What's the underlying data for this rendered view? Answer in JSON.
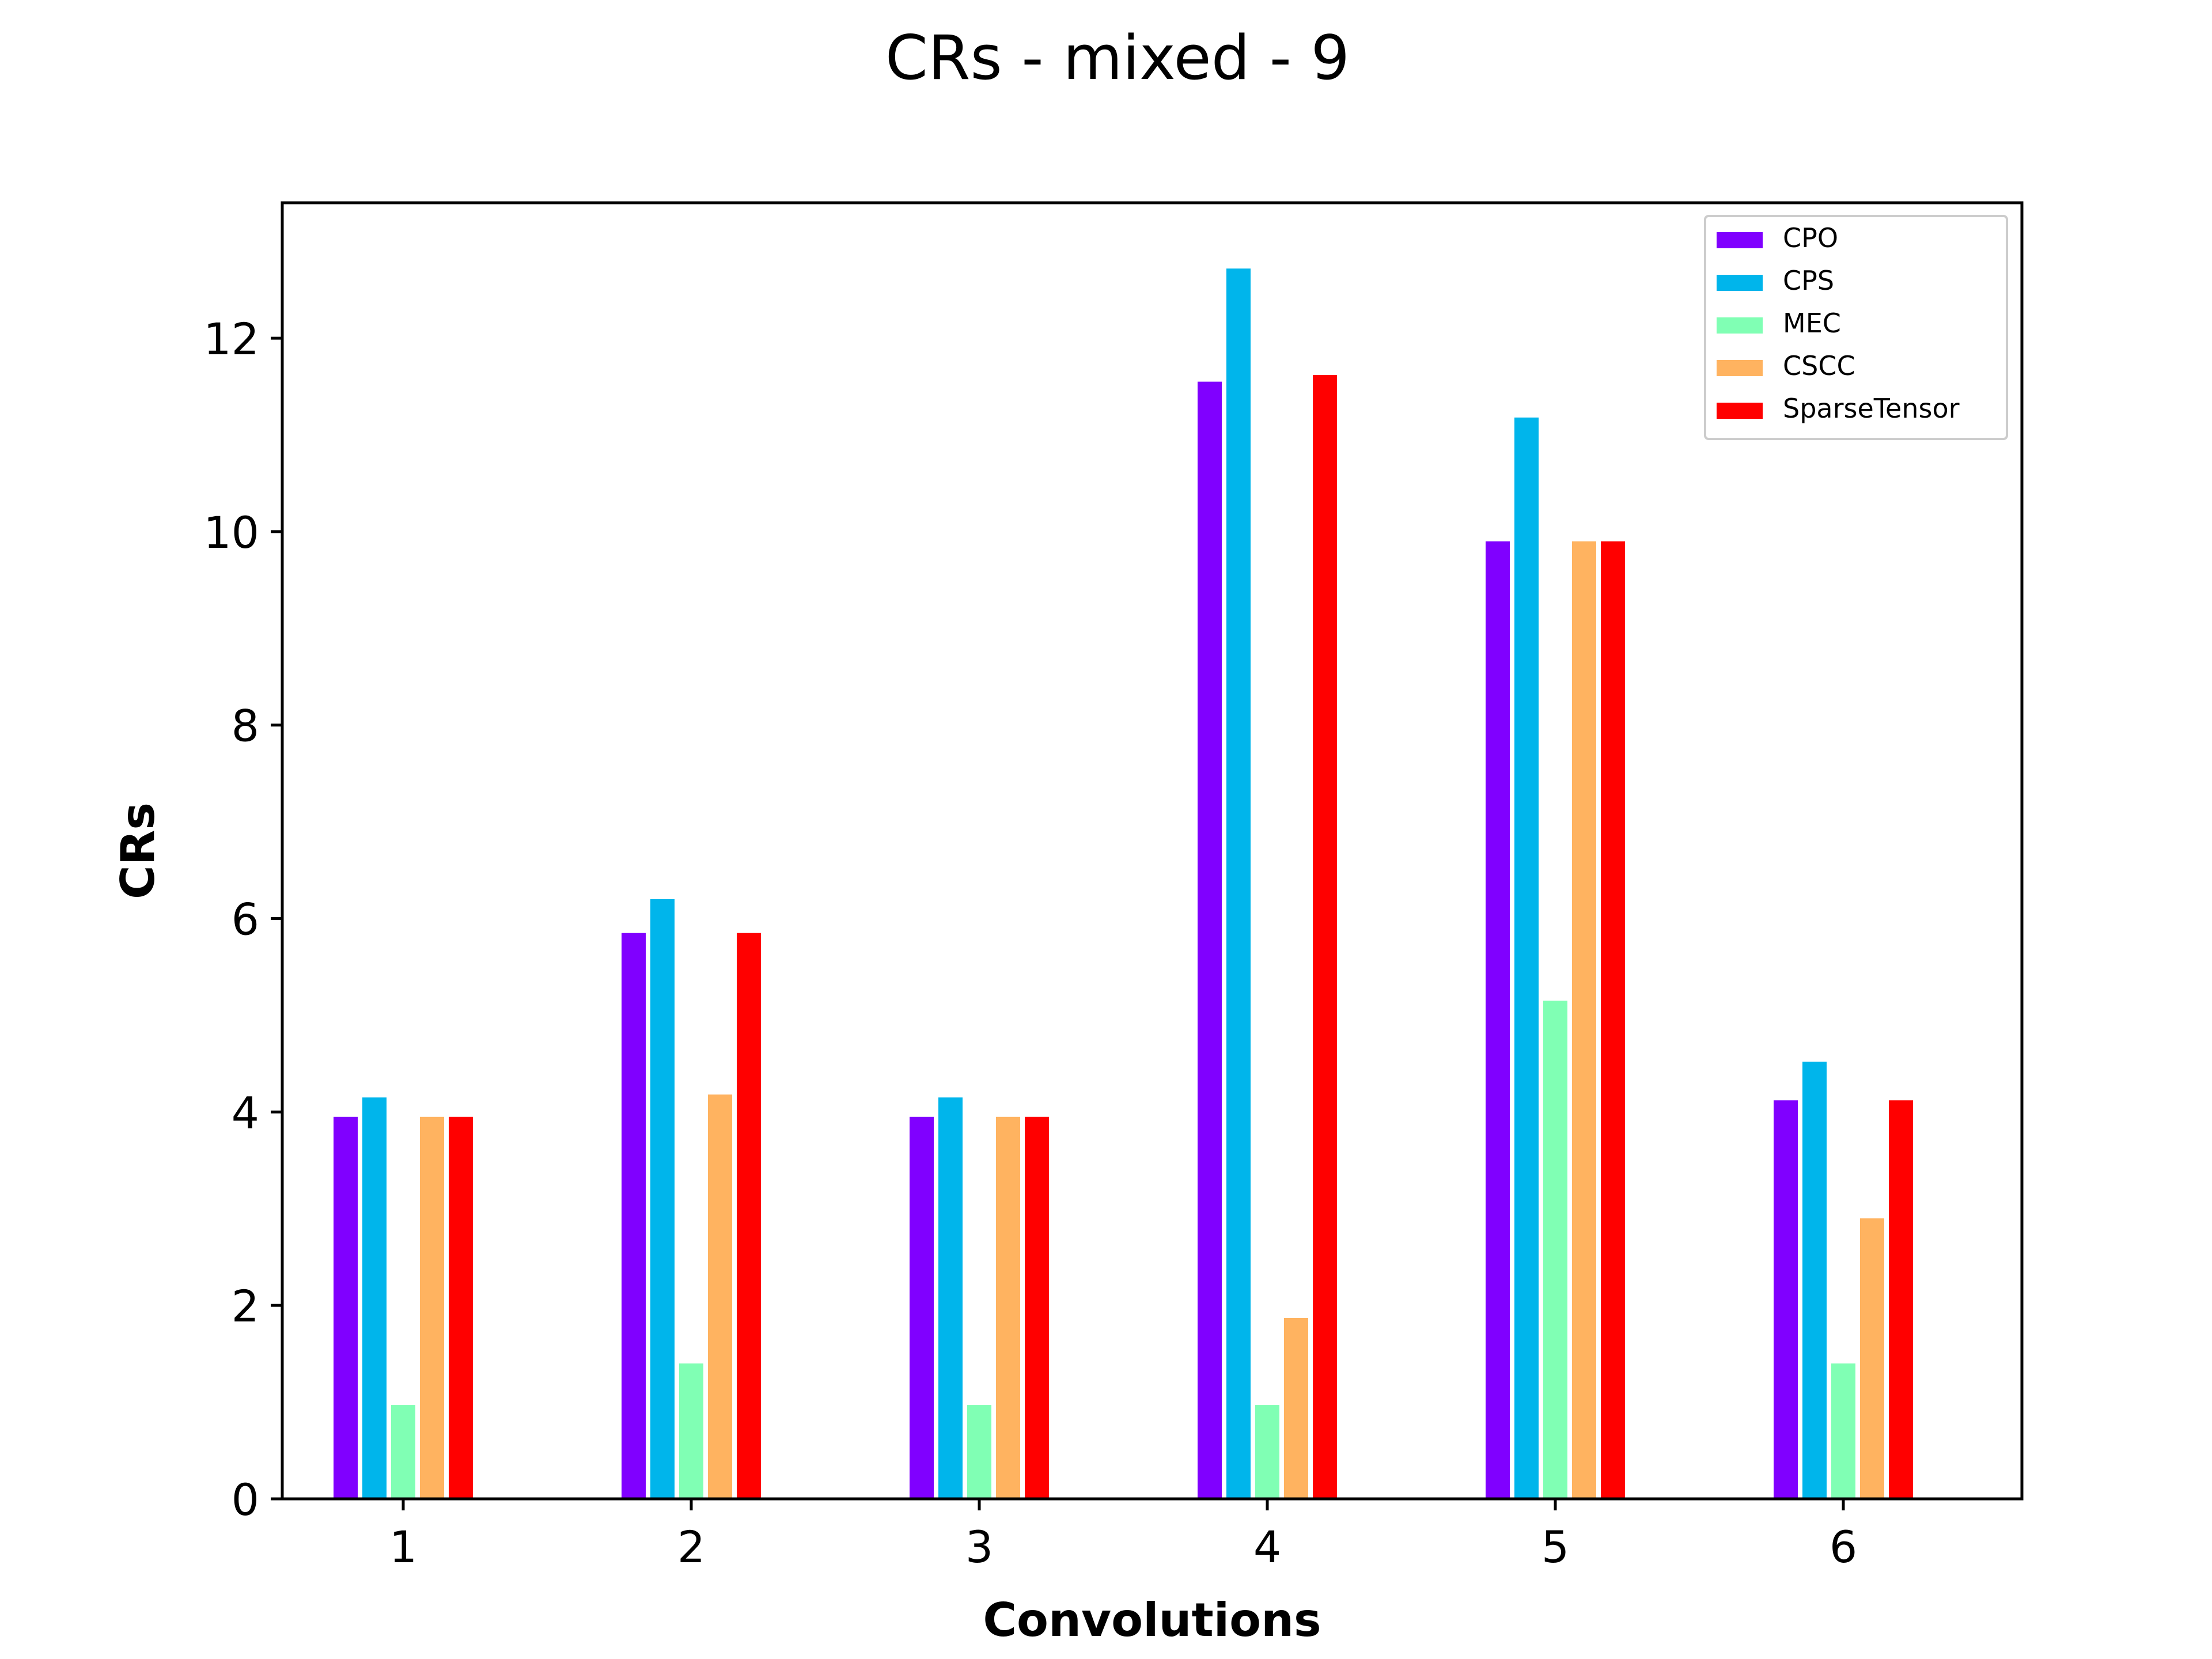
{
  "chart_data": {
    "type": "bar",
    "title": "CRs - mixed - 9",
    "xlabel": "Convolutions",
    "ylabel": "CRs",
    "categories": [
      "1",
      "2",
      "3",
      "4",
      "5",
      "6"
    ],
    "ylim": [
      0,
      13.4
    ],
    "yticks": [
      0,
      2,
      4,
      6,
      8,
      10,
      12
    ],
    "grid": false,
    "legend_position": "top-right",
    "series": [
      {
        "name": "CPO",
        "color": "#8000ff",
        "values": [
          3.95,
          5.85,
          3.95,
          11.55,
          9.9,
          4.12
        ]
      },
      {
        "name": "CPS",
        "color": "#00b5eb",
        "values": [
          4.15,
          6.2,
          4.15,
          12.72,
          11.18,
          4.52
        ]
      },
      {
        "name": "MEC",
        "color": "#80ffb4",
        "values": [
          0.97,
          1.4,
          0.97,
          0.97,
          5.15,
          1.4
        ]
      },
      {
        "name": "CSCC",
        "color": "#ffb360",
        "values": [
          3.95,
          4.18,
          3.95,
          1.87,
          9.9,
          2.9
        ]
      },
      {
        "name": "SparseTensor",
        "color": "#ff0000",
        "values": [
          3.95,
          5.85,
          3.95,
          11.62,
          9.9,
          4.12
        ]
      }
    ]
  }
}
